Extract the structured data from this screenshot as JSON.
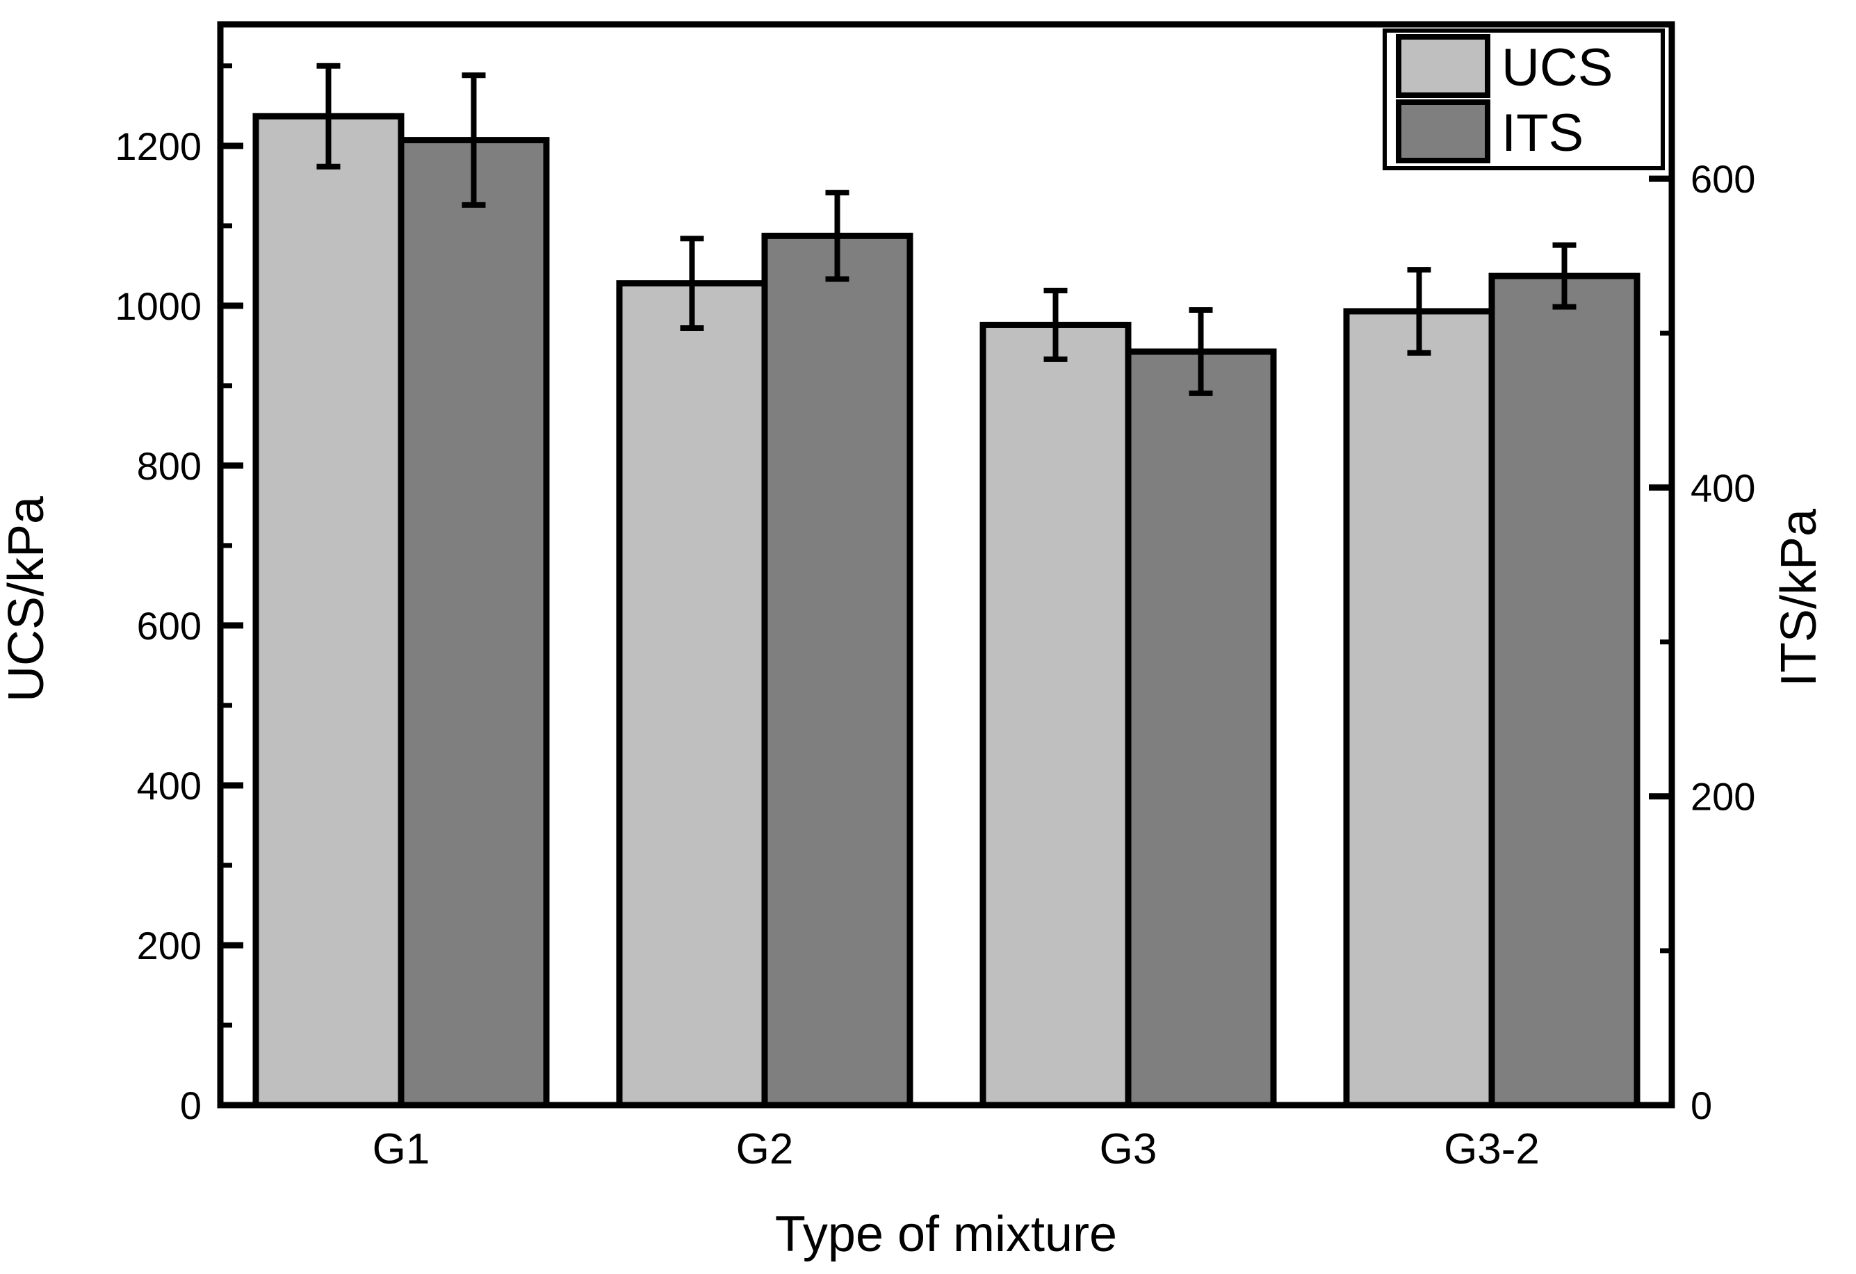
{
  "chart_data": {
    "type": "bar",
    "title": "",
    "categories": [
      "G1",
      "G2",
      "G3",
      "G3-2"
    ],
    "series": [
      {
        "name": "UCS",
        "axis": "left",
        "color": "#bfbfbf",
        "values": [
          1237,
          1028,
          976,
          993
        ],
        "errors": [
          63,
          56,
          43,
          52
        ]
      },
      {
        "name": "ITS",
        "axis": "right",
        "color": "#7f7f7f",
        "values": [
          625,
          563,
          488,
          537
        ],
        "errors": [
          42,
          28,
          27,
          20
        ]
      }
    ],
    "xlabel": "Type of mixture",
    "left_axis": {
      "label": "UCS/kPa",
      "major_ticks": [
        0,
        200,
        400,
        600,
        800,
        1000,
        1200
      ],
      "minor_ticks": [
        100,
        300,
        500,
        700,
        900,
        1100,
        1300
      ],
      "range": [
        0,
        1352
      ]
    },
    "right_axis": {
      "label": "ITS/kPa",
      "major_ticks": [
        0,
        200,
        400,
        600
      ],
      "minor_ticks": [
        100,
        300,
        500
      ],
      "range": [
        0,
        700
      ]
    },
    "legend": {
      "entries": [
        "UCS",
        "ITS"
      ],
      "position": "top-right"
    },
    "grid": false,
    "colors": {
      "background": "#ffffff",
      "bar_outline": "#000000",
      "axis": "#000000",
      "error_bar": "#000000"
    }
  }
}
